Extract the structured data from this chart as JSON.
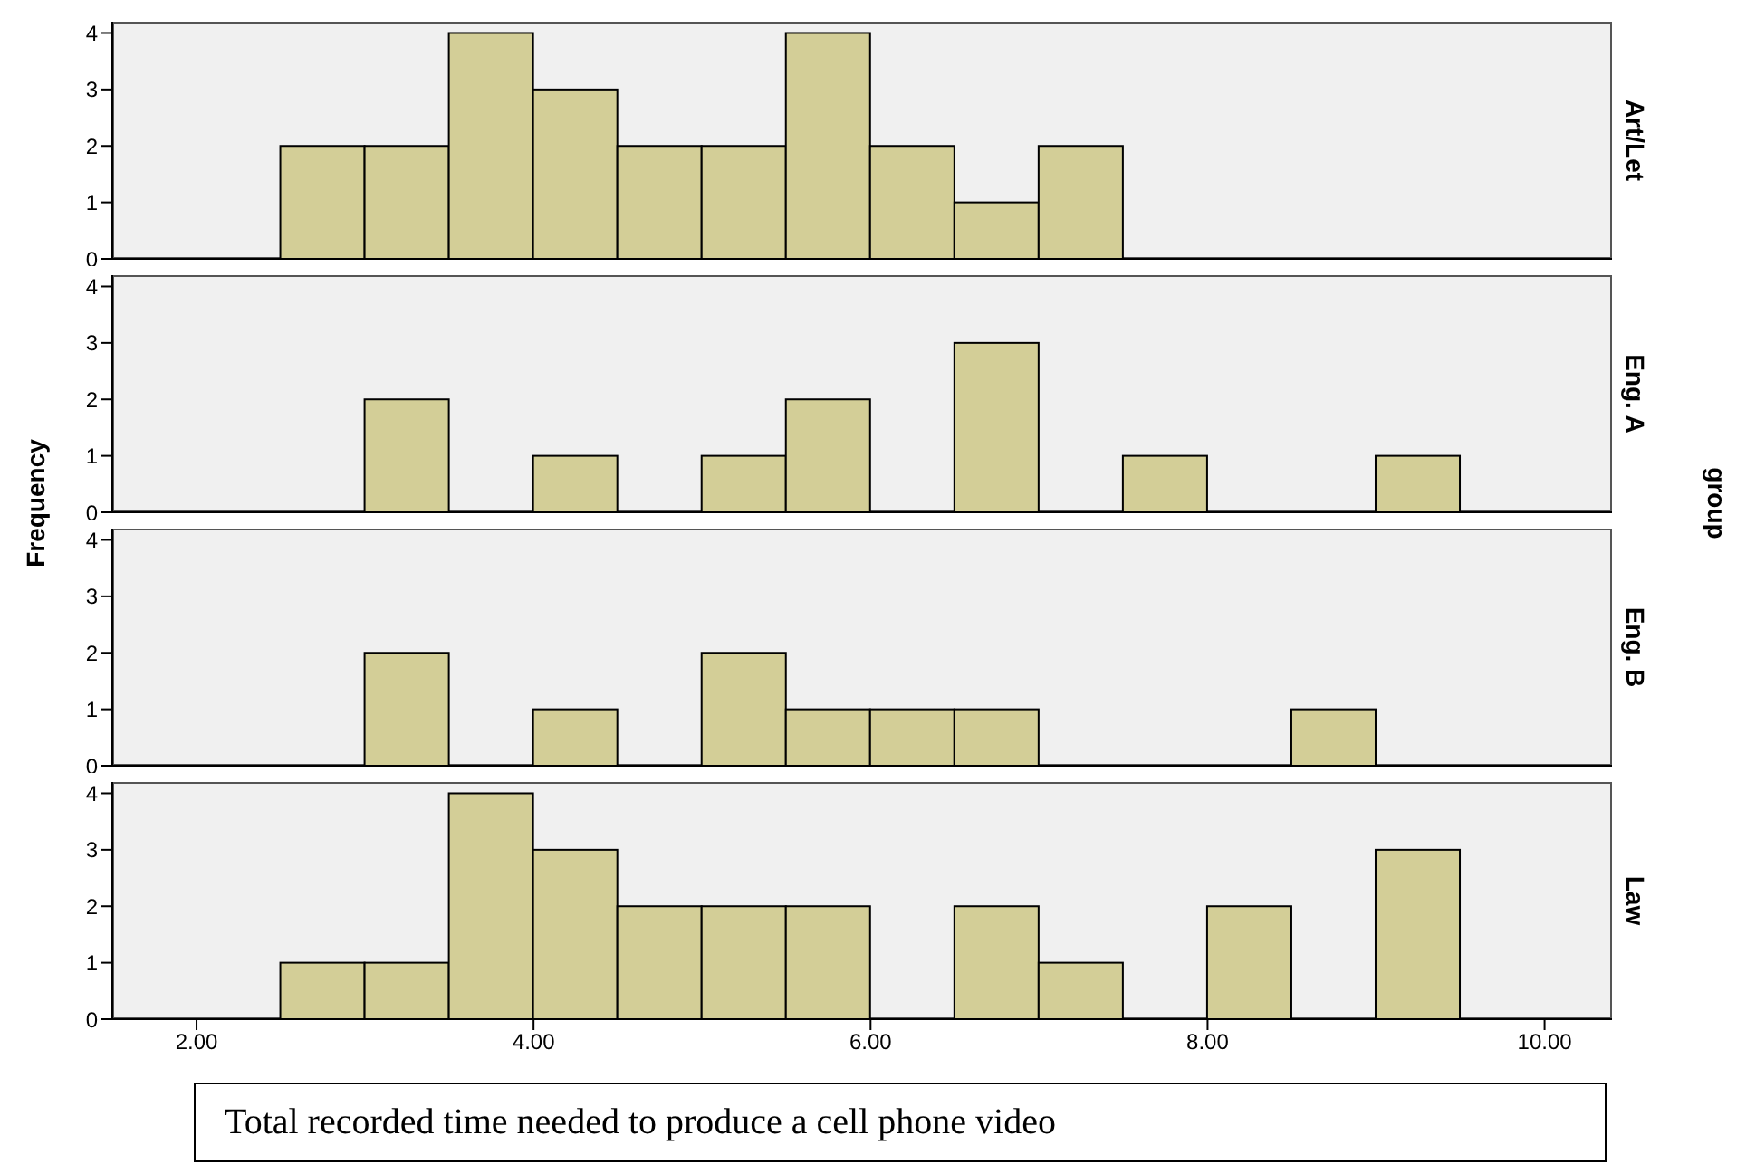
{
  "chart_data": [
    {
      "type": "histogram",
      "title": "Art/Let",
      "bins": [
        2.5,
        3,
        3.5,
        4,
        4.5,
        5,
        5.5,
        6,
        6.5,
        7,
        7.5,
        8,
        8.5,
        9,
        9.5
      ],
      "values": [
        2,
        2,
        4,
        3,
        2,
        2,
        4,
        2,
        1,
        2,
        0,
        0,
        0,
        0
      ],
      "color": "#d3ce97",
      "xlim": [
        1.5,
        10.4
      ],
      "ylim": [
        0,
        4.2
      ],
      "yticks": [
        0,
        1,
        2,
        3,
        4
      ],
      "grid": false,
      "legend": false,
      "tick_labels": "y"
    },
    {
      "type": "histogram",
      "title": "Eng. A",
      "ylabel": "Frequency",
      "y2label": "group",
      "bins": [
        2.5,
        3,
        3.5,
        4,
        4.5,
        5,
        5.5,
        6,
        6.5,
        7,
        7.5,
        8,
        8.5,
        9,
        9.5
      ],
      "values": [
        0,
        2,
        0,
        1,
        0,
        1,
        2,
        0,
        3,
        0,
        1,
        0,
        0,
        1
      ],
      "color": "#d3ce97",
      "xlim": [
        1.5,
        10.4
      ],
      "ylim": [
        0,
        4.2
      ],
      "yticks": [
        0,
        1,
        2,
        3,
        4
      ],
      "grid": false,
      "legend": false,
      "tick_labels": "y"
    },
    {
      "type": "histogram",
      "title": "Eng. B",
      "bins": [
        2.5,
        3,
        3.5,
        4,
        4.5,
        5,
        5.5,
        6,
        6.5,
        7,
        7.5,
        8,
        8.5,
        9,
        9.5
      ],
      "values": [
        0,
        2,
        0,
        1,
        0,
        2,
        1,
        1,
        1,
        0,
        0,
        0,
        1,
        0
      ],
      "color": "#d3ce97",
      "xlim": [
        1.5,
        10.4
      ],
      "ylim": [
        0,
        4.2
      ],
      "yticks": [
        0,
        1,
        2,
        3,
        4
      ],
      "grid": false,
      "legend": false,
      "tick_labels": "y"
    },
    {
      "type": "histogram",
      "title": "Law",
      "xlabel": "Total recorded time needed to produce a cell phone video",
      "bins": [
        2.5,
        3,
        3.5,
        4,
        4.5,
        5,
        5.5,
        6,
        6.5,
        7,
        7.5,
        8,
        8.5,
        9,
        9.5
      ],
      "values": [
        1,
        1,
        4,
        3,
        2,
        2,
        2,
        0,
        2,
        1,
        0,
        2,
        0,
        3
      ],
      "color": "#d3ce97",
      "xlim": [
        1.5,
        10.4
      ],
      "ylim": [
        0,
        4.2
      ],
      "yticks": [
        0,
        1,
        2,
        3,
        4
      ],
      "xticks": [
        {
          "value": 2,
          "label": "2.00"
        },
        {
          "value": 4,
          "label": "4.00"
        },
        {
          "value": 6,
          "label": "6.00"
        },
        {
          "value": 8,
          "label": "8.00"
        },
        {
          "value": 10,
          "label": "10.00"
        }
      ],
      "grid": false,
      "legend": false
    }
  ]
}
